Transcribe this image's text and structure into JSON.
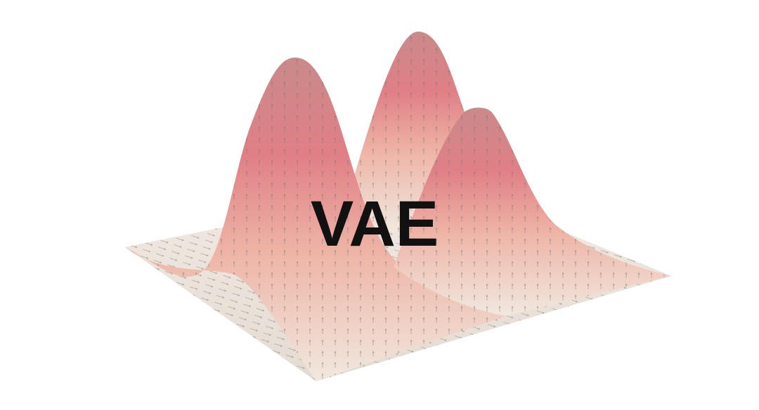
{
  "title": "VAE"
}
